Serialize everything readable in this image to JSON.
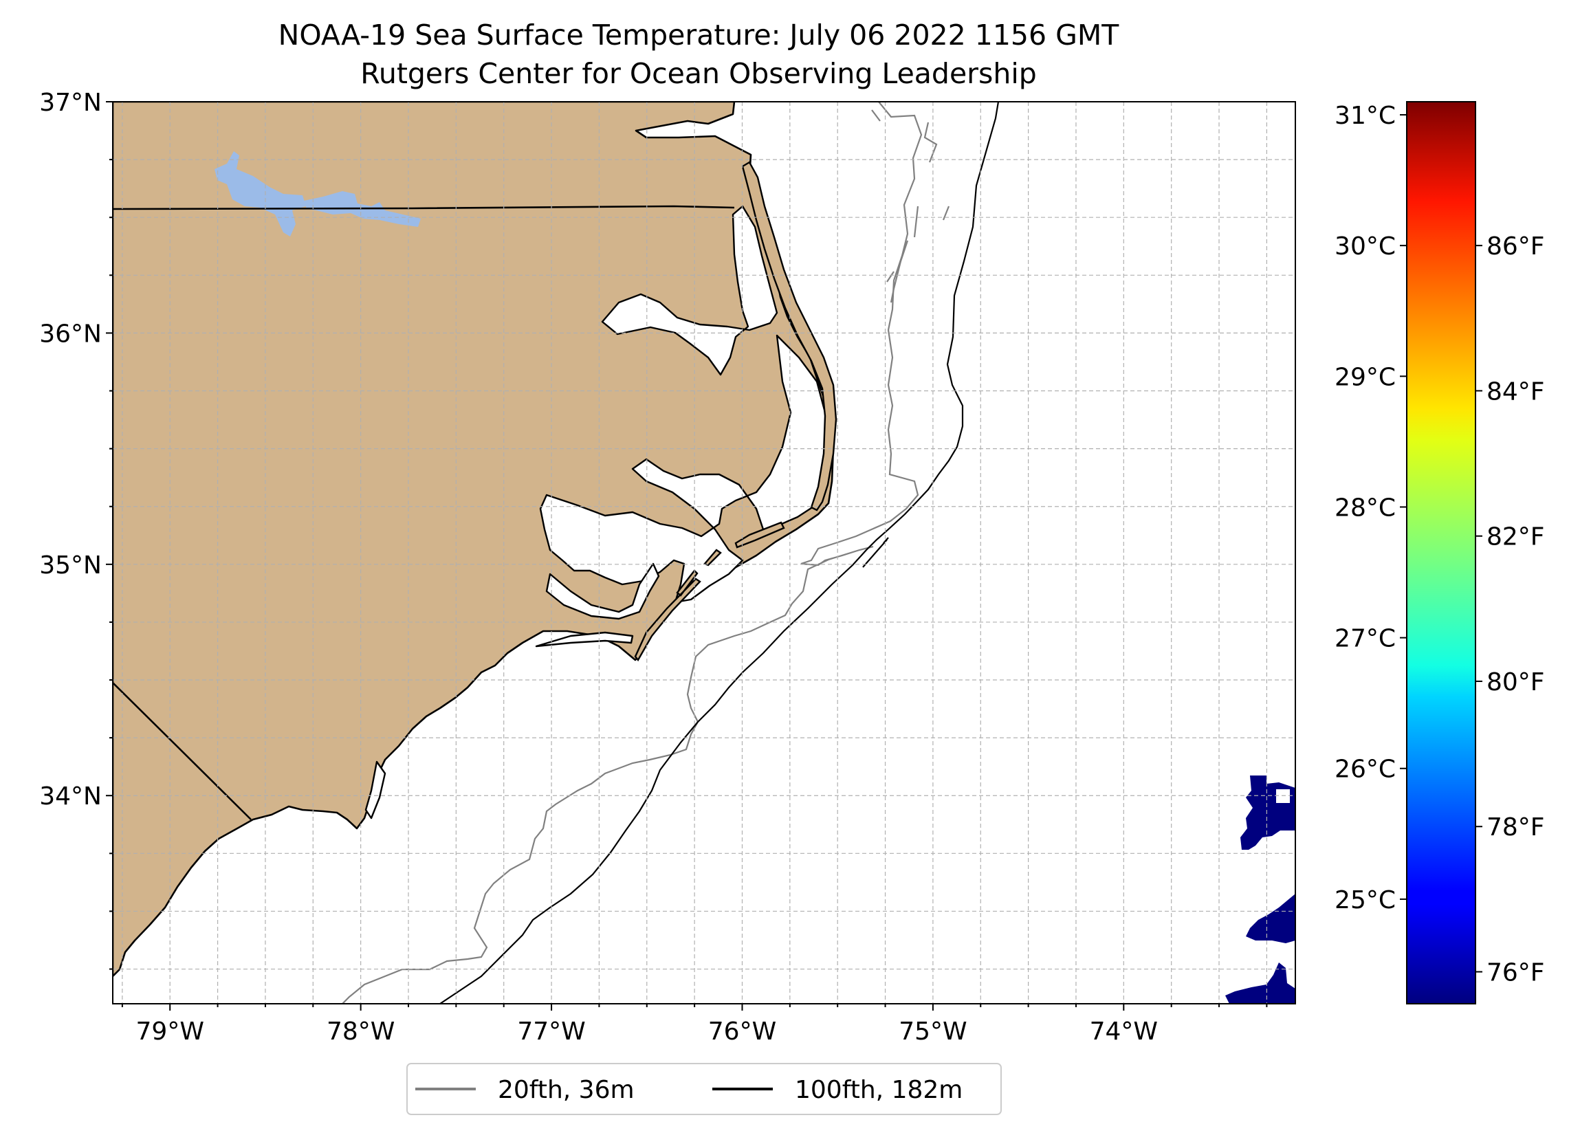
{
  "title": {
    "line1": "NOAA-19 Sea Surface Temperature: July 06 2022 1156 GMT",
    "line2": "Rutgers Center for Ocean Observing Leadership"
  },
  "map": {
    "lon_range": [
      -79.3,
      -73.1
    ],
    "lat_range": [
      33.1,
      37.0
    ],
    "lon_ticks": [
      {
        "value": -79,
        "label": "79°W"
      },
      {
        "value": -78,
        "label": "78°W"
      },
      {
        "value": -77,
        "label": "77°W"
      },
      {
        "value": -76,
        "label": "76°W"
      },
      {
        "value": -75,
        "label": "75°W"
      },
      {
        "value": -74,
        "label": "74°W"
      }
    ],
    "lat_ticks": [
      {
        "value": 37,
        "label": "37°N"
      },
      {
        "value": 36,
        "label": "36°N"
      },
      {
        "value": 35,
        "label": "35°N"
      },
      {
        "value": 34,
        "label": "34°N"
      }
    ],
    "grid_step_deg": 0.25,
    "grid": true,
    "colors": {
      "land": "#d2b48c",
      "lake": "#9bbbe8",
      "coastline": "#000000",
      "isobath_20fth": "#808080",
      "isobath_100fth": "#000000",
      "cold_water": "#00007f",
      "grid": "#b0b0b0"
    }
  },
  "legend": {
    "placement": "bottom-center",
    "items": [
      {
        "label": "20fth, 36m",
        "color": "#808080"
      },
      {
        "label": "100fth, 182m",
        "color": "#000000"
      }
    ]
  },
  "colorbar": {
    "colormap": "jet",
    "range_c": [
      24.2,
      31.1
    ],
    "celsius_ticks": [
      {
        "value": 31,
        "label": "31°C"
      },
      {
        "value": 30,
        "label": "30°C"
      },
      {
        "value": 29,
        "label": "29°C"
      },
      {
        "value": 28,
        "label": "28°C"
      },
      {
        "value": 27,
        "label": "27°C"
      },
      {
        "value": 26,
        "label": "26°C"
      },
      {
        "value": 25,
        "label": "25°C"
      }
    ],
    "fahrenheit_ticks": [
      {
        "value": 86,
        "label": "86°F"
      },
      {
        "value": 84,
        "label": "84°F"
      },
      {
        "value": 82,
        "label": "82°F"
      },
      {
        "value": 80,
        "label": "80°F"
      },
      {
        "value": 78,
        "label": "78°F"
      },
      {
        "value": 76,
        "label": "76°F"
      }
    ]
  }
}
